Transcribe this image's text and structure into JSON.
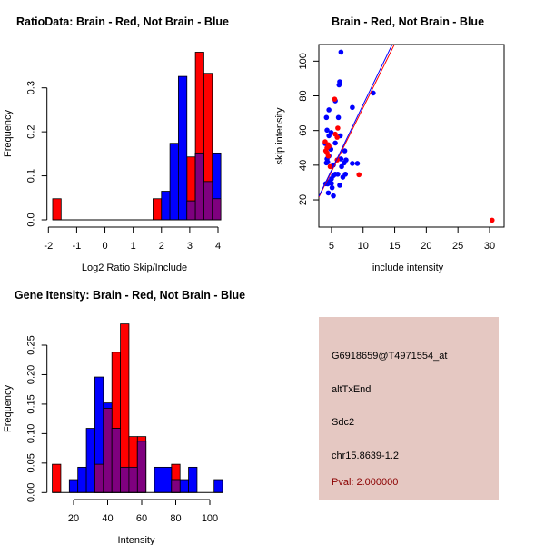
{
  "colors": {
    "red": "#ff0000",
    "blue": "#0000ff",
    "overlap": "#7f007f",
    "info_bg": "#e5c8c2",
    "pval": "#8b0000"
  },
  "chart_data": [
    {
      "type": "bar",
      "title": "RatioData: Brain - Red, Not Brain - Blue",
      "xlabel": "Log2 Ratio Skip/Include",
      "ylabel": "Frequency",
      "xlim": [
        -2,
        4
      ],
      "ylim": [
        0,
        0.38
      ],
      "xticks": [
        "-2",
        "-1",
        "0",
        "1",
        "2",
        "3",
        "4"
      ],
      "xtick_values": [
        -2,
        -1,
        0,
        1,
        2,
        3,
        4
      ],
      "yticks": [
        "0.0",
        "0.1",
        "0.2",
        "0.3"
      ],
      "ytick_values": [
        0,
        0.1,
        0.2,
        0.3
      ],
      "series": [
        {
          "name": "Brain",
          "color": "red",
          "bins": [
            [
              -1.85,
              -1.55,
              0.048
            ],
            [
              1.7,
              2.0,
              0.048
            ],
            [
              2.9,
              3.2,
              0.143
            ],
            [
              3.2,
              3.5,
              0.381
            ],
            [
              3.5,
              3.8,
              0.333
            ],
            [
              3.8,
              4.1,
              0.048
            ]
          ]
        },
        {
          "name": "Not Brain",
          "color": "blue",
          "bins": [
            [
              2.0,
              2.3,
              0.065
            ],
            [
              2.3,
              2.6,
              0.174
            ],
            [
              2.6,
              2.9,
              0.326
            ],
            [
              2.9,
              3.2,
              0.043
            ],
            [
              3.2,
              3.5,
              0.152
            ],
            [
              3.5,
              3.8,
              0.087
            ],
            [
              3.8,
              4.1,
              0.152
            ]
          ]
        }
      ]
    },
    {
      "type": "scatter",
      "title": "Brain - Red, Not Brain - Blue",
      "xlabel": "include intensity",
      "ylabel": "skip intensity",
      "xlim": [
        3.0,
        32.3
      ],
      "ylim": [
        4.3,
        109.6
      ],
      "xticks": [
        "5",
        "10",
        "15",
        "20",
        "25",
        "30"
      ],
      "xtick_values": [
        5,
        10,
        15,
        20,
        25,
        30
      ],
      "yticks": [
        "20",
        "40",
        "60",
        "80",
        "100"
      ],
      "ytick_values": [
        20,
        40,
        60,
        80,
        100
      ],
      "series": [
        {
          "name": "Not Brain",
          "color": "blue",
          "points": [
            [
              6.5,
              105.2
            ],
            [
              6.3,
              88.1
            ],
            [
              6.2,
              86.3
            ],
            [
              11.6,
              81.6
            ],
            [
              5.6,
              77.1
            ],
            [
              8.3,
              73.3
            ],
            [
              4.6,
              71.9
            ],
            [
              4.2,
              67.5
            ],
            [
              6.1,
              67.5
            ],
            [
              4.3,
              60.2
            ],
            [
              4.95,
              58.8
            ],
            [
              4.6,
              57.0
            ],
            [
              6.4,
              57.0
            ],
            [
              5.6,
              52.8
            ],
            [
              4.0,
              52.5
            ],
            [
              4.9,
              49.2
            ],
            [
              7.1,
              48.3
            ],
            [
              4.6,
              45.3
            ],
            [
              4.3,
              43.6
            ],
            [
              4.2,
              41.3
            ],
            [
              4.4,
              41.8
            ],
            [
              6.5,
              43.6
            ],
            [
              7.3,
              43.0
            ],
            [
              7.0,
              41.3
            ],
            [
              6.6,
              39.2
            ],
            [
              8.3,
              41.0
            ],
            [
              9.1,
              41.0
            ],
            [
              5.3,
              40.1
            ],
            [
              6.0,
              34.8
            ],
            [
              7.2,
              34.8
            ],
            [
              5.3,
              34.0
            ],
            [
              5.6,
              34.8
            ],
            [
              6.8,
              33.1
            ],
            [
              5.0,
              32.2
            ],
            [
              4.6,
              30.5
            ],
            [
              4.1,
              29.3
            ],
            [
              6.3,
              28.4
            ],
            [
              5.1,
              27.0
            ],
            [
              4.5,
              24.0
            ],
            [
              5.3,
              22.3
            ],
            [
              5.0,
              29.5
            ],
            [
              4.4,
              29.2
            ]
          ],
          "fit": {
            "intercept": -0.65,
            "slope": 7.55
          }
        },
        {
          "name": "Brain",
          "color": "red",
          "points": [
            [
              5.5,
              78.1
            ],
            [
              6.0,
              61.4
            ],
            [
              5.6,
              57.9
            ],
            [
              5.9,
              56.1
            ],
            [
              4.0,
              53.5
            ],
            [
              4.5,
              51.8
            ],
            [
              4.3,
              50.0
            ],
            [
              4.1,
              48.3
            ],
            [
              4.6,
              50.9
            ],
            [
              4.3,
              47.1
            ],
            [
              4.5,
              45.3
            ],
            [
              4.8,
              39.2
            ],
            [
              9.35,
              34.5
            ],
            [
              30.4,
              8.3
            ],
            [
              5.9,
              43.0
            ]
          ],
          "fit": {
            "intercept": -0.6,
            "slope": 7.37
          }
        }
      ]
    },
    {
      "type": "bar",
      "title": "Gene Itensity: Brain - Red, Not Brain - Blue",
      "xlabel": "Intensity",
      "ylabel": "Frequency",
      "xlim": [
        20,
        100
      ],
      "ylim": [
        0,
        0.29
      ],
      "xticks": [
        "20",
        "40",
        "60",
        "80",
        "100"
      ],
      "xtick_values": [
        20,
        40,
        60,
        80,
        100
      ],
      "yticks": [
        "0.00",
        "0.05",
        "0.10",
        "0.15",
        "0.20",
        "0.25"
      ],
      "ytick_values": [
        0,
        0.05,
        0.1,
        0.15,
        0.2,
        0.25
      ],
      "series": [
        {
          "name": "Brain",
          "color": "red",
          "bins": [
            [
              7.5,
              12.5,
              0.048
            ],
            [
              32.5,
              37.5,
              0.048
            ],
            [
              37.5,
              42.5,
              0.143
            ],
            [
              42.5,
              47.5,
              0.238
            ],
            [
              47.5,
              52.5,
              0.286
            ],
            [
              52.5,
              57.5,
              0.095
            ],
            [
              57.5,
              62.5,
              0.095
            ],
            [
              77.5,
              82.5,
              0.048
            ]
          ]
        },
        {
          "name": "Not Brain",
          "color": "blue",
          "bins": [
            [
              17.5,
              22.5,
              0.022
            ],
            [
              22.5,
              27.5,
              0.043
            ],
            [
              27.5,
              32.5,
              0.109
            ],
            [
              32.5,
              37.5,
              0.196
            ],
            [
              37.5,
              42.5,
              0.152
            ],
            [
              42.5,
              47.5,
              0.109
            ],
            [
              47.5,
              52.5,
              0.043
            ],
            [
              52.5,
              57.5,
              0.043
            ],
            [
              57.5,
              62.5,
              0.087
            ],
            [
              67.5,
              72.5,
              0.043
            ],
            [
              72.5,
              77.5,
              0.043
            ],
            [
              77.5,
              82.5,
              0.022
            ],
            [
              82.5,
              87.5,
              0.022
            ],
            [
              87.5,
              92.5,
              0.043
            ],
            [
              102.5,
              107.5,
              0.022
            ]
          ]
        }
      ]
    }
  ],
  "info": {
    "probe": "G6918659@T4971554_at",
    "event_type": "altTxEnd",
    "gene": "Sdc2",
    "location": "chr15.8639-1.2",
    "pval": "Pval: 2.000000"
  }
}
